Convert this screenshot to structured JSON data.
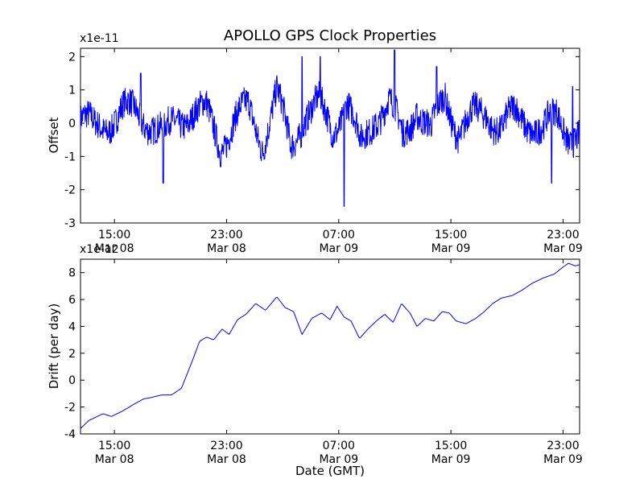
{
  "figure_title": "APOLLO GPS Clock Properties",
  "shared_xlabel": "Date (GMT)",
  "chart_data": [
    {
      "type": "line",
      "ylabel": "Offset",
      "multiplier": "x1e-11",
      "ylim": [
        -3,
        2.25
      ],
      "yticks": [
        "-3",
        "-2",
        "-1",
        "0",
        "1",
        "2"
      ],
      "xlim": [
        "2010-03-08 12:35",
        "2010-03-10 00:00"
      ],
      "xticks": [
        {
          "time": "Mar 08 15:00",
          "hm": "15:00",
          "day": "Mar 08"
        },
        {
          "time": "Mar 08 23:00",
          "hm": "23:00",
          "day": "Mar 08"
        },
        {
          "time": "Mar 09 07:00",
          "hm": "07:00",
          "day": "Mar 09"
        },
        {
          "time": "Mar 09 15:00",
          "hm": "15:00",
          "day": "Mar 09"
        },
        {
          "time": "Mar 09 23:00",
          "hm": "23:00",
          "day": "Mar 09"
        }
      ],
      "series": [
        {
          "color": "#0000ff",
          "t_hours": [
            0,
            1,
            2,
            3,
            4,
            5,
            6,
            7,
            8,
            9,
            10,
            11,
            12,
            13,
            14,
            15,
            16,
            17,
            18,
            19,
            20,
            21,
            22,
            23,
            24,
            25,
            26,
            27,
            28,
            29,
            30,
            31,
            32,
            33,
            34,
            35
          ],
          "values": [
            0.2,
            -0.3,
            0.1,
            0.5,
            0.4,
            0.1,
            -0.6,
            0.2,
            0.5,
            0.4,
            -0.9,
            0.1,
            0.6,
            -0.8,
            1.2,
            -1.0,
            0.4,
            0.7,
            -0.3,
            1.0,
            -1.1,
            0.3,
            0.9,
            -0.7,
            0.8,
            -0.5,
            1.2,
            -0.4,
            0.2,
            0.5,
            -0.2,
            0.3,
            0.1,
            -0.4,
            0.3,
            -0.5
          ],
          "spikes": [
            {
              "t": 4.3,
              "v": 1.5
            },
            {
              "t": 5.9,
              "v": -1.8
            },
            {
              "t": 15.8,
              "v": 2.0
            },
            {
              "t": 17.1,
              "v": 2.0
            },
            {
              "t": 18.8,
              "v": -2.5
            },
            {
              "t": 22.4,
              "v": 2.2
            },
            {
              "t": 25.4,
              "v": 1.7
            },
            {
              "t": 33.6,
              "v": -1.8
            },
            {
              "t": 35.1,
              "v": 1.1
            }
          ]
        }
      ]
    },
    {
      "type": "line",
      "ylabel": "Drift (per day)",
      "multiplier": "x1e-12",
      "ylim": [
        -4,
        9
      ],
      "yticks": [
        "-4",
        "-2",
        "0",
        "2",
        "4",
        "6",
        "8"
      ],
      "xlim": [
        "2010-03-08 12:35",
        "2010-03-10 00:00"
      ],
      "xticks": [
        {
          "time": "Mar 08 15:00",
          "hm": "15:00",
          "day": "Mar 08"
        },
        {
          "time": "Mar 08 23:00",
          "hm": "23:00",
          "day": "Mar 08"
        },
        {
          "time": "Mar 09 07:00",
          "hm": "07:00",
          "day": "Mar 09"
        },
        {
          "time": "Mar 09 15:00",
          "hm": "15:00",
          "day": "Mar 09"
        },
        {
          "time": "Mar 09 23:00",
          "hm": "23:00",
          "day": "Mar 09"
        }
      ],
      "series": [
        {
          "color": "#0000ff",
          "t_hours": [
            0,
            0.6,
            1.0,
            1.6,
            2.2,
            3.0,
            3.8,
            4.5,
            5.0,
            5.8,
            6.5,
            7.2,
            8.0,
            8.5,
            9.0,
            9.5,
            10.1,
            10.6,
            11.2,
            11.8,
            12.5,
            13.2,
            14.0,
            14.6,
            15.2,
            15.8,
            16.5,
            17.2,
            17.8,
            18.3,
            18.8,
            19.3,
            19.9,
            20.5,
            21.1,
            21.7,
            22.3,
            22.9,
            23.5,
            24.0,
            24.6,
            25.2,
            25.8,
            26.3,
            26.8,
            27.5,
            28.2,
            28.8,
            29.4,
            30.0,
            30.8,
            31.5,
            32.2,
            33.0,
            33.8,
            34.4,
            34.8,
            35.3,
            35.6
          ],
          "values": [
            -3.6,
            -3.0,
            -2.8,
            -2.5,
            -2.7,
            -2.3,
            -1.8,
            -1.4,
            -1.3,
            -1.1,
            -1.1,
            -0.6,
            1.5,
            2.9,
            3.2,
            3.0,
            3.8,
            3.4,
            4.5,
            4.9,
            5.7,
            5.2,
            6.2,
            5.4,
            5.1,
            3.4,
            4.6,
            5.0,
            4.5,
            5.5,
            4.7,
            4.4,
            3.1,
            3.8,
            4.4,
            4.9,
            4.3,
            5.7,
            5.0,
            4.0,
            4.6,
            4.4,
            5.1,
            5.0,
            4.4,
            4.2,
            4.6,
            5.1,
            5.7,
            6.1,
            6.3,
            6.7,
            7.2,
            7.6,
            7.9,
            8.4,
            8.7,
            8.5,
            8.6
          ]
        }
      ]
    }
  ]
}
